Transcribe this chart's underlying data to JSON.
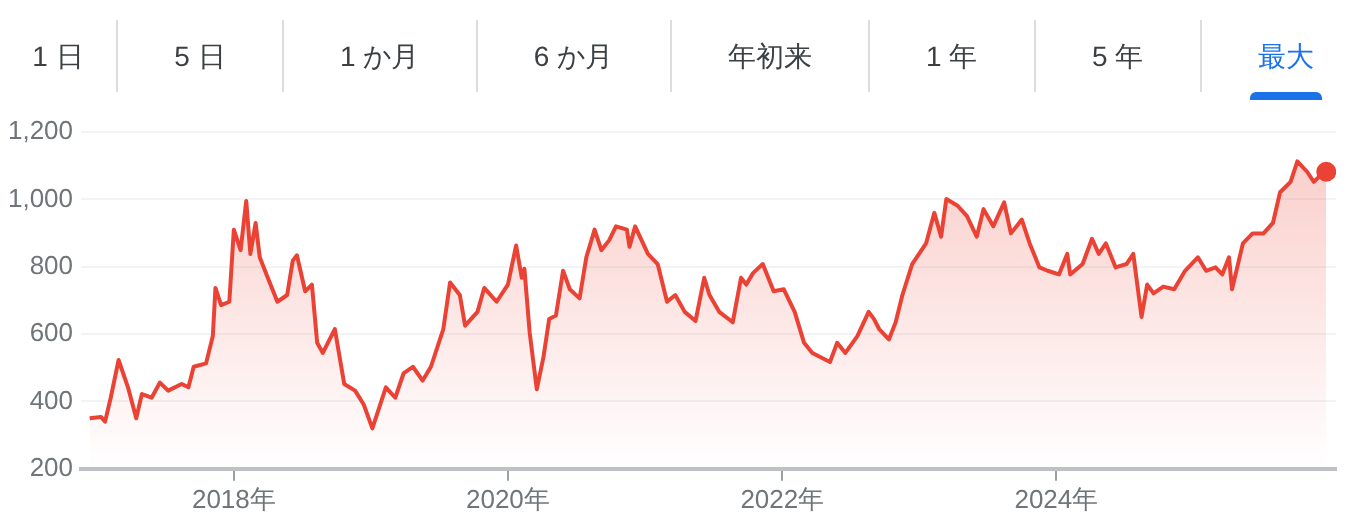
{
  "chart_data": {
    "type": "area",
    "annotations": [
      "1 日",
      "5 日",
      "1 か月",
      "6 か月",
      "年初来",
      "1 年",
      "5 年",
      "最大"
    ],
    "x": [
      "2016-12-13",
      "2017-01-12",
      "2017-01-23",
      "2017-02-07",
      "2017-02-28",
      "2017-03-25",
      "2017-04-16",
      "2017-05-01",
      "2017-05-27",
      "2017-06-18",
      "2017-07-10",
      "2017-08-15",
      "2017-09-02",
      "2017-09-16",
      "2017-10-19",
      "2017-11-06",
      "2017-11-13",
      "2017-11-28",
      "2017-12-20",
      "2018-01-01",
      "2018-01-19",
      "2018-02-03",
      "2018-02-14",
      "2018-02-28",
      "2018-03-11",
      "2018-03-29",
      "2018-04-27",
      "2018-05-23",
      "2018-06-07",
      "2018-06-18",
      "2018-07-10",
      "2018-07-28",
      "2018-08-11",
      "2018-08-26",
      "2018-09-27",
      "2018-10-22",
      "2018-11-20",
      "2018-12-13",
      "2019-01-05",
      "2019-02-10",
      "2019-03-07",
      "2019-03-29",
      "2019-04-23",
      "2019-05-19",
      "2019-06-10",
      "2019-07-13",
      "2019-07-31",
      "2019-08-26",
      "2019-09-09",
      "2019-10-12",
      "2019-10-30",
      "2019-12-02",
      "2020-01-01",
      "2020-01-23",
      "2020-02-07",
      "2020-02-14",
      "2020-02-28",
      "2020-03-18",
      "2020-04-05",
      "2020-04-20",
      "2020-05-08",
      "2020-05-27",
      "2020-06-14",
      "2020-07-10",
      "2020-07-28",
      "2020-08-19",
      "2020-09-06",
      "2020-09-27",
      "2020-10-15",
      "2020-11-13",
      "2020-11-20",
      "2020-12-05",
      "2021-01-08",
      "2021-02-03",
      "2021-02-28",
      "2021-03-22",
      "2021-04-16",
      "2021-05-15",
      "2021-06-07",
      "2021-06-21",
      "2021-07-17",
      "2021-08-22",
      "2021-09-13",
      "2021-09-27",
      "2021-10-15",
      "2021-11-10",
      "2021-12-09",
      "2022-01-05",
      "2022-02-03",
      "2022-02-28",
      "2022-03-22",
      "2022-05-08",
      "2022-05-27",
      "2022-06-18",
      "2022-07-20",
      "2022-08-19",
      "2022-09-02",
      "2022-09-16",
      "2022-10-12",
      "2022-10-30",
      "2022-11-17",
      "2022-12-13",
      "2023-01-19",
      "2023-02-10",
      "2023-02-28",
      "2023-03-14",
      "2023-04-13",
      "2023-05-08",
      "2023-06-03",
      "2023-06-21",
      "2023-07-17",
      "2023-08-15",
      "2023-09-02",
      "2023-10-01",
      "2023-10-22",
      "2023-11-17",
      "2023-12-09",
      "2024-01-08",
      "2024-01-30",
      "2024-02-07",
      "2024-03-11",
      "2024-04-05",
      "2024-04-23",
      "2024-05-12",
      "2024-06-07",
      "2024-07-06",
      "2024-07-24",
      "2024-08-15",
      "2024-08-30",
      "2024-09-16",
      "2024-10-12",
      "2024-11-10",
      "2024-12-09",
      "2025-01-12",
      "2025-02-03",
      "2025-02-28",
      "2025-03-18",
      "2025-04-05",
      "2025-04-13",
      "2025-05-12",
      "2025-06-07",
      "2025-07-06",
      "2025-07-31",
      "2025-08-19",
      "2025-09-16",
      "2025-10-04",
      "2025-10-30",
      "2025-11-17",
      "2025-12-05",
      "2025-12-20"
    ],
    "values": [
      350,
      354,
      340,
      411,
      523,
      442,
      350,
      422,
      411,
      456,
      432,
      452,
      442,
      503,
      513,
      594,
      737,
      686,
      696,
      910,
      849,
      995,
      838,
      930,
      828,
      777,
      696,
      716,
      818,
      834,
      727,
      747,
      574,
      544,
      615,
      452,
      432,
      391,
      320,
      442,
      411,
      483,
      503,
      462,
      503,
      615,
      753,
      716,
      625,
      666,
      737,
      696,
      747,
      863,
      767,
      794,
      605,
      436,
      533,
      645,
      655,
      788,
      733,
      706,
      828,
      910,
      849,
      879,
      920,
      910,
      859,
      920,
      838,
      808,
      696,
      716,
      666,
      639,
      767,
      716,
      666,
      635,
      767,
      747,
      781,
      808,
      727,
      733,
      666,
      574,
      544,
      517,
      574,
      544,
      594,
      666,
      645,
      615,
      584,
      635,
      716,
      808,
      869,
      960,
      889,
      1001,
      981,
      950,
      889,
      971,
      920,
      991,
      899,
      940,
      869,
      798,
      788,
      777,
      838,
      777,
      808,
      883,
      838,
      869,
      798,
      808,
      838,
      651,
      747,
      721,
      741,
      733,
      788,
      828,
      788,
      798,
      777,
      828,
      733,
      869,
      899,
      899,
      930,
      1021,
      1052,
      1113,
      1082,
      1052,
      1072,
      1082
    ],
    "color": "#ea4335",
    "xlim": [
      "2016-11-20",
      "2026-01-15"
    ],
    "xticks": [
      {
        "value": "2018-01-01",
        "label": "2018年"
      },
      {
        "value": "2020-01-01",
        "label": "2020年"
      },
      {
        "value": "2022-01-01",
        "label": "2022年"
      },
      {
        "value": "2024-01-01",
        "label": "2024年"
      }
    ],
    "ylim": [
      200,
      1200
    ],
    "yticks": [
      {
        "value": 200,
        "label": "200"
      },
      {
        "value": 400,
        "label": "400"
      },
      {
        "value": 600,
        "label": "600"
      },
      {
        "value": 800,
        "label": "800"
      },
      {
        "value": 1000,
        "label": "1,000"
      },
      {
        "value": 1200,
        "label": "1,200"
      }
    ],
    "grid": "y",
    "legend": false
  }
}
